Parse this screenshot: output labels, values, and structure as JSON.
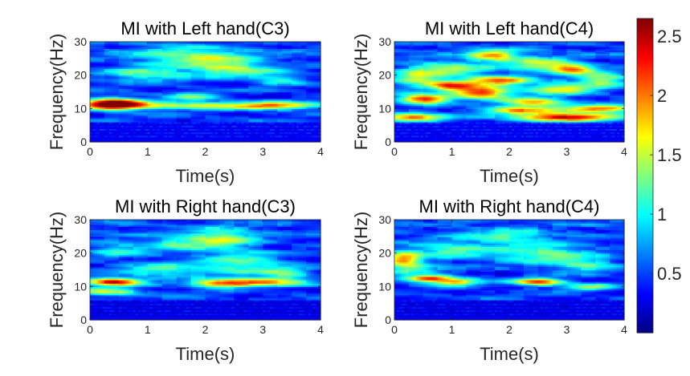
{
  "chart_data": [
    {
      "type": "heatmap",
      "title": "MI with Left hand(C3)",
      "xlabel": "Time(s)",
      "ylabel": "Frequency(Hz)",
      "xlim": [
        0,
        4
      ],
      "ylim": [
        0,
        30
      ],
      "xticks": [
        "0",
        "1",
        "2",
        "3",
        "4"
      ],
      "yticks": [
        "0",
        "10",
        "20",
        "30"
      ],
      "colormap": "jet",
      "clim": [
        0,
        2.65
      ],
      "features": [
        {
          "band": "low",
          "f": [
            0.5,
            6
          ],
          "t": [
            0,
            4
          ],
          "value": 0.25
        },
        {
          "t0": 0.4,
          "f0": 11.5,
          "st": 0.35,
          "sf": 1.2,
          "amp": 2.3
        },
        {
          "t0": 2.0,
          "f0": 11.0,
          "st": 1.6,
          "sf": 0.8,
          "amp": 1.1
        },
        {
          "t0": 3.2,
          "f0": 11.0,
          "st": 0.4,
          "sf": 0.8,
          "amp": 0.8
        },
        {
          "t0": 1.8,
          "f0": 13.5,
          "st": 0.3,
          "sf": 1.0,
          "amp": 0.7
        },
        {
          "t0": 1.0,
          "f0": 20.5,
          "st": 0.5,
          "sf": 1.5,
          "amp": 0.8
        },
        {
          "t0": 2.6,
          "f0": 21.5,
          "st": 0.5,
          "sf": 1.5,
          "amp": 0.8
        },
        {
          "t0": 3.3,
          "f0": 18.5,
          "st": 0.3,
          "sf": 1.0,
          "amp": 0.6
        },
        {
          "t0": 2.2,
          "f0": 24.5,
          "st": 0.5,
          "sf": 2.0,
          "amp": 0.7
        },
        {
          "t0": 1.5,
          "f0": 26.0,
          "st": 0.6,
          "sf": 2.0,
          "amp": 0.6
        }
      ]
    },
    {
      "type": "heatmap",
      "title": "MI with Left hand(C4)",
      "xlabel": "Time(s)",
      "ylabel": "Frequency(Hz)",
      "xlim": [
        0,
        4
      ],
      "ylim": [
        0,
        30
      ],
      "xticks": [
        "0",
        "1",
        "2",
        "3",
        "4"
      ],
      "yticks": [
        "0",
        "10",
        "20",
        "30"
      ],
      "colormap": "jet",
      "clim": [
        0,
        2.65
      ],
      "features": [
        {
          "band": "low",
          "f": [
            0.5,
            6
          ],
          "t": [
            0,
            4
          ],
          "value": 0.25
        },
        {
          "t0": 0.3,
          "f0": 7.5,
          "st": 0.4,
          "sf": 0.8,
          "amp": 1.7
        },
        {
          "t0": 3.0,
          "f0": 7.5,
          "st": 0.6,
          "sf": 0.8,
          "amp": 2.2
        },
        {
          "t0": 3.6,
          "f0": 10.0,
          "st": 0.4,
          "sf": 0.8,
          "amp": 1.7
        },
        {
          "t0": 0.5,
          "f0": 13.0,
          "st": 0.3,
          "sf": 1.0,
          "amp": 1.9
        },
        {
          "t0": 1.5,
          "f0": 15.0,
          "st": 0.35,
          "sf": 1.2,
          "amp": 1.8
        },
        {
          "t0": 1.0,
          "f0": 17.0,
          "st": 0.3,
          "sf": 1.0,
          "amp": 1.5
        },
        {
          "t0": 1.8,
          "f0": 18.5,
          "st": 0.4,
          "sf": 1.0,
          "amp": 1.6
        },
        {
          "t0": 2.4,
          "f0": 12.0,
          "st": 0.4,
          "sf": 1.0,
          "amp": 1.5
        },
        {
          "t0": 2.2,
          "f0": 9.5,
          "st": 0.5,
          "sf": 0.8,
          "amp": 1.3
        },
        {
          "t0": 3.1,
          "f0": 22.0,
          "st": 0.25,
          "sf": 1.0,
          "amp": 1.5
        },
        {
          "t0": 2.9,
          "f0": 16.0,
          "st": 0.4,
          "sf": 1.2,
          "amp": 1.2
        },
        {
          "t0": 1.7,
          "f0": 26.0,
          "st": 0.3,
          "sf": 1.2,
          "amp": 1.4
        },
        {
          "t0": 0.9,
          "f0": 22.0,
          "st": 0.5,
          "sf": 1.5,
          "amp": 1.0
        },
        {
          "t0": 0.4,
          "f0": 19.0,
          "st": 0.3,
          "sf": 1.5,
          "amp": 1.0
        },
        {
          "t0": 3.6,
          "f0": 19.0,
          "st": 0.3,
          "sf": 1.5,
          "amp": 1.1
        },
        {
          "t0": 2.5,
          "f0": 23.5,
          "st": 0.4,
          "sf": 1.5,
          "amp": 1.0
        }
      ]
    },
    {
      "type": "heatmap",
      "title": "MI with Right hand(C3)",
      "xlabel": "Time(s)",
      "ylabel": "Frequency(Hz)",
      "xlim": [
        0,
        4
      ],
      "ylim": [
        0,
        30
      ],
      "xticks": [
        "0",
        "1",
        "2",
        "3",
        "4"
      ],
      "yticks": [
        "0",
        "10",
        "20",
        "30"
      ],
      "colormap": "jet",
      "clim": [
        0,
        2.65
      ],
      "features": [
        {
          "band": "low",
          "f": [
            0.5,
            6
          ],
          "t": [
            0,
            4
          ],
          "value": 0.2
        },
        {
          "t0": 0.4,
          "f0": 11.5,
          "st": 0.35,
          "sf": 0.8,
          "amp": 2.0
        },
        {
          "t0": 2.3,
          "f0": 11.0,
          "st": 0.4,
          "sf": 0.8,
          "amp": 1.4
        },
        {
          "t0": 3.0,
          "f0": 11.5,
          "st": 0.5,
          "sf": 0.8,
          "amp": 1.2
        },
        {
          "t0": 0.3,
          "f0": 8.5,
          "st": 0.4,
          "sf": 0.8,
          "amp": 1.1
        },
        {
          "t0": 2.3,
          "f0": 24.5,
          "st": 0.4,
          "sf": 2.0,
          "amp": 1.0
        },
        {
          "t0": 2.6,
          "f0": 17.0,
          "st": 0.5,
          "sf": 2.5,
          "amp": 0.8
        },
        {
          "t0": 1.2,
          "f0": 15.0,
          "st": 0.5,
          "sf": 1.5,
          "amp": 0.7
        },
        {
          "t0": 3.4,
          "f0": 14.0,
          "st": 0.3,
          "sf": 1.5,
          "amp": 0.7
        },
        {
          "t0": 1.5,
          "f0": 23.0,
          "st": 0.4,
          "sf": 1.5,
          "amp": 0.7
        },
        {
          "t0": 0.5,
          "f0": 21.0,
          "st": 0.3,
          "sf": 1.5,
          "amp": 0.6
        }
      ]
    },
    {
      "type": "heatmap",
      "title": "MI with Right hand(C4)",
      "xlabel": "Time(s)",
      "ylabel": "Frequency(Hz)",
      "xlim": [
        0,
        4
      ],
      "ylim": [
        0,
        30
      ],
      "xticks": [
        "0",
        "1",
        "2",
        "3",
        "4"
      ],
      "yticks": [
        "0",
        "10",
        "20",
        "30"
      ],
      "colormap": "jet",
      "clim": [
        0,
        2.65
      ],
      "features": [
        {
          "band": "low",
          "f": [
            0.5,
            6
          ],
          "t": [
            0,
            4
          ],
          "value": 0.2
        },
        {
          "t0": 0.6,
          "f0": 12.5,
          "st": 0.3,
          "sf": 0.7,
          "amp": 1.8
        },
        {
          "t0": 2.5,
          "f0": 11.5,
          "st": 0.3,
          "sf": 0.8,
          "amp": 1.7
        },
        {
          "t0": 1.1,
          "f0": 11.5,
          "st": 0.3,
          "sf": 0.8,
          "amp": 1.2
        },
        {
          "t0": 0.15,
          "f0": 18.5,
          "st": 0.2,
          "sf": 1.5,
          "amp": 1.4
        },
        {
          "t0": 0.3,
          "f0": 15.5,
          "st": 0.3,
          "sf": 1.0,
          "amp": 0.9
        },
        {
          "t0": 1.0,
          "f0": 21.0,
          "st": 0.5,
          "sf": 2.0,
          "amp": 0.7
        },
        {
          "t0": 2.6,
          "f0": 20.0,
          "st": 0.6,
          "sf": 2.0,
          "amp": 0.8
        },
        {
          "t0": 2.0,
          "f0": 25.0,
          "st": 0.5,
          "sf": 1.5,
          "amp": 0.7
        },
        {
          "t0": 3.3,
          "f0": 16.5,
          "st": 0.4,
          "sf": 1.5,
          "amp": 0.7
        },
        {
          "t0": 3.4,
          "f0": 10.0,
          "st": 0.3,
          "sf": 0.8,
          "amp": 0.9
        }
      ]
    }
  ],
  "colorbar": {
    "ticks": [
      "0.5",
      "1",
      "1.5",
      "2",
      "2.5"
    ],
    "tick_values": [
      0.5,
      1,
      1.5,
      2,
      2.5
    ],
    "range": [
      0,
      2.65
    ],
    "colormap": "jet"
  }
}
